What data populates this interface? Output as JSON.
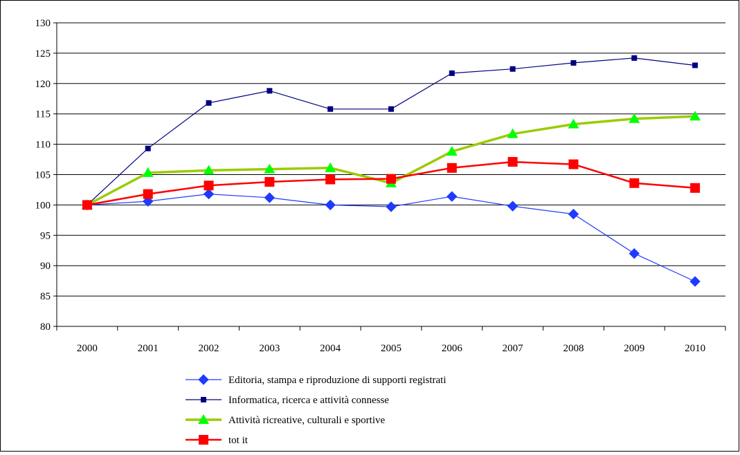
{
  "chart_data": {
    "type": "line",
    "title": "",
    "xlabel": "",
    "ylabel": "",
    "ylim": [
      80,
      130
    ],
    "yticks": [
      80,
      85,
      90,
      95,
      100,
      105,
      110,
      115,
      120,
      125,
      130
    ],
    "grid": "horizontal",
    "legend_position": "bottom",
    "categories": [
      "2000",
      "2001",
      "2002",
      "2003",
      "2004",
      "2005",
      "2006",
      "2007",
      "2008",
      "2009",
      "2010"
    ],
    "series": [
      {
        "name": "Editoria, stampa e riproduzione di supporti registrati",
        "color": "#1f3bff",
        "marker": "diamond",
        "values": [
          100.0,
          100.6,
          101.8,
          101.2,
          100.0,
          99.7,
          101.4,
          99.8,
          98.5,
          92.0,
          87.4
        ]
      },
      {
        "name": "Informatica, ricerca e attività connesse",
        "color": "#000080",
        "marker": "square-small",
        "values": [
          100.0,
          109.3,
          116.8,
          118.8,
          115.8,
          115.8,
          121.7,
          122.4,
          123.4,
          124.2,
          123.0
        ]
      },
      {
        "name": "Attività ricreative, culturali e sportive",
        "color": "#99cc00",
        "marker": "triangle",
        "marker_color": "#00ff00",
        "values": [
          100.0,
          105.3,
          105.7,
          105.9,
          106.1,
          103.6,
          108.8,
          111.7,
          113.3,
          114.2,
          114.6
        ]
      },
      {
        "name": "tot it",
        "color": "#ff0000",
        "marker": "square",
        "values": [
          100.0,
          101.8,
          103.2,
          103.8,
          104.2,
          104.3,
          106.1,
          107.1,
          106.7,
          103.6,
          102.8
        ]
      }
    ]
  }
}
